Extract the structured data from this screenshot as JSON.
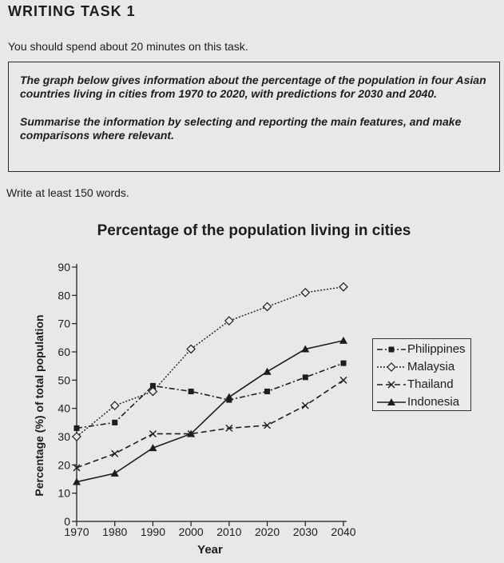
{
  "header": {
    "title": "WRITING TASK 1",
    "time_note": "You should spend about 20 minutes on this task."
  },
  "prompt": {
    "description": "The graph below gives information about the percentage of the population in four Asian countries living in cities from 1970 to 2020, with predictions for 2030 and 2040.",
    "instruction": "Summarise the information by selecting and reporting the main features, and make comparisons where relevant."
  },
  "word_requirement": "Write at least 150 words.",
  "colors": {
    "series": "#1d1d1d",
    "background": "#e9e8e6"
  },
  "chart_data": {
    "type": "line",
    "title": "Percentage of the population living in cities",
    "xlabel": "Year",
    "ylabel": "Percentage (%) of total population",
    "x": [
      1970,
      1980,
      1990,
      2000,
      2010,
      2020,
      2030,
      2040
    ],
    "x_ticks": [
      "1970",
      "1980",
      "1990",
      "2000",
      "2010",
      "2020",
      "2030",
      "2040"
    ],
    "y_ticks": [
      "0",
      "10",
      "20",
      "30",
      "40",
      "50",
      "60",
      "70",
      "80",
      "90"
    ],
    "ylim": [
      0,
      90
    ],
    "grid": false,
    "legend_position": "right",
    "series": [
      {
        "name": "Philippines",
        "marker": "filled-square",
        "line_style": "dash-dot",
        "values": [
          33,
          35,
          48,
          46,
          43,
          46,
          51,
          56
        ]
      },
      {
        "name": "Malaysia",
        "marker": "open-diamond",
        "line_style": "dotted",
        "values": [
          30,
          41,
          46,
          61,
          71,
          76,
          81,
          83
        ]
      },
      {
        "name": "Thailand",
        "marker": "x",
        "line_style": "dashed",
        "values": [
          19,
          24,
          31,
          31,
          33,
          34,
          41,
          50
        ]
      },
      {
        "name": "Indonesia",
        "marker": "filled-triangle",
        "line_style": "solid",
        "values": [
          14,
          17,
          26,
          31,
          44,
          53,
          61,
          64
        ]
      }
    ]
  }
}
